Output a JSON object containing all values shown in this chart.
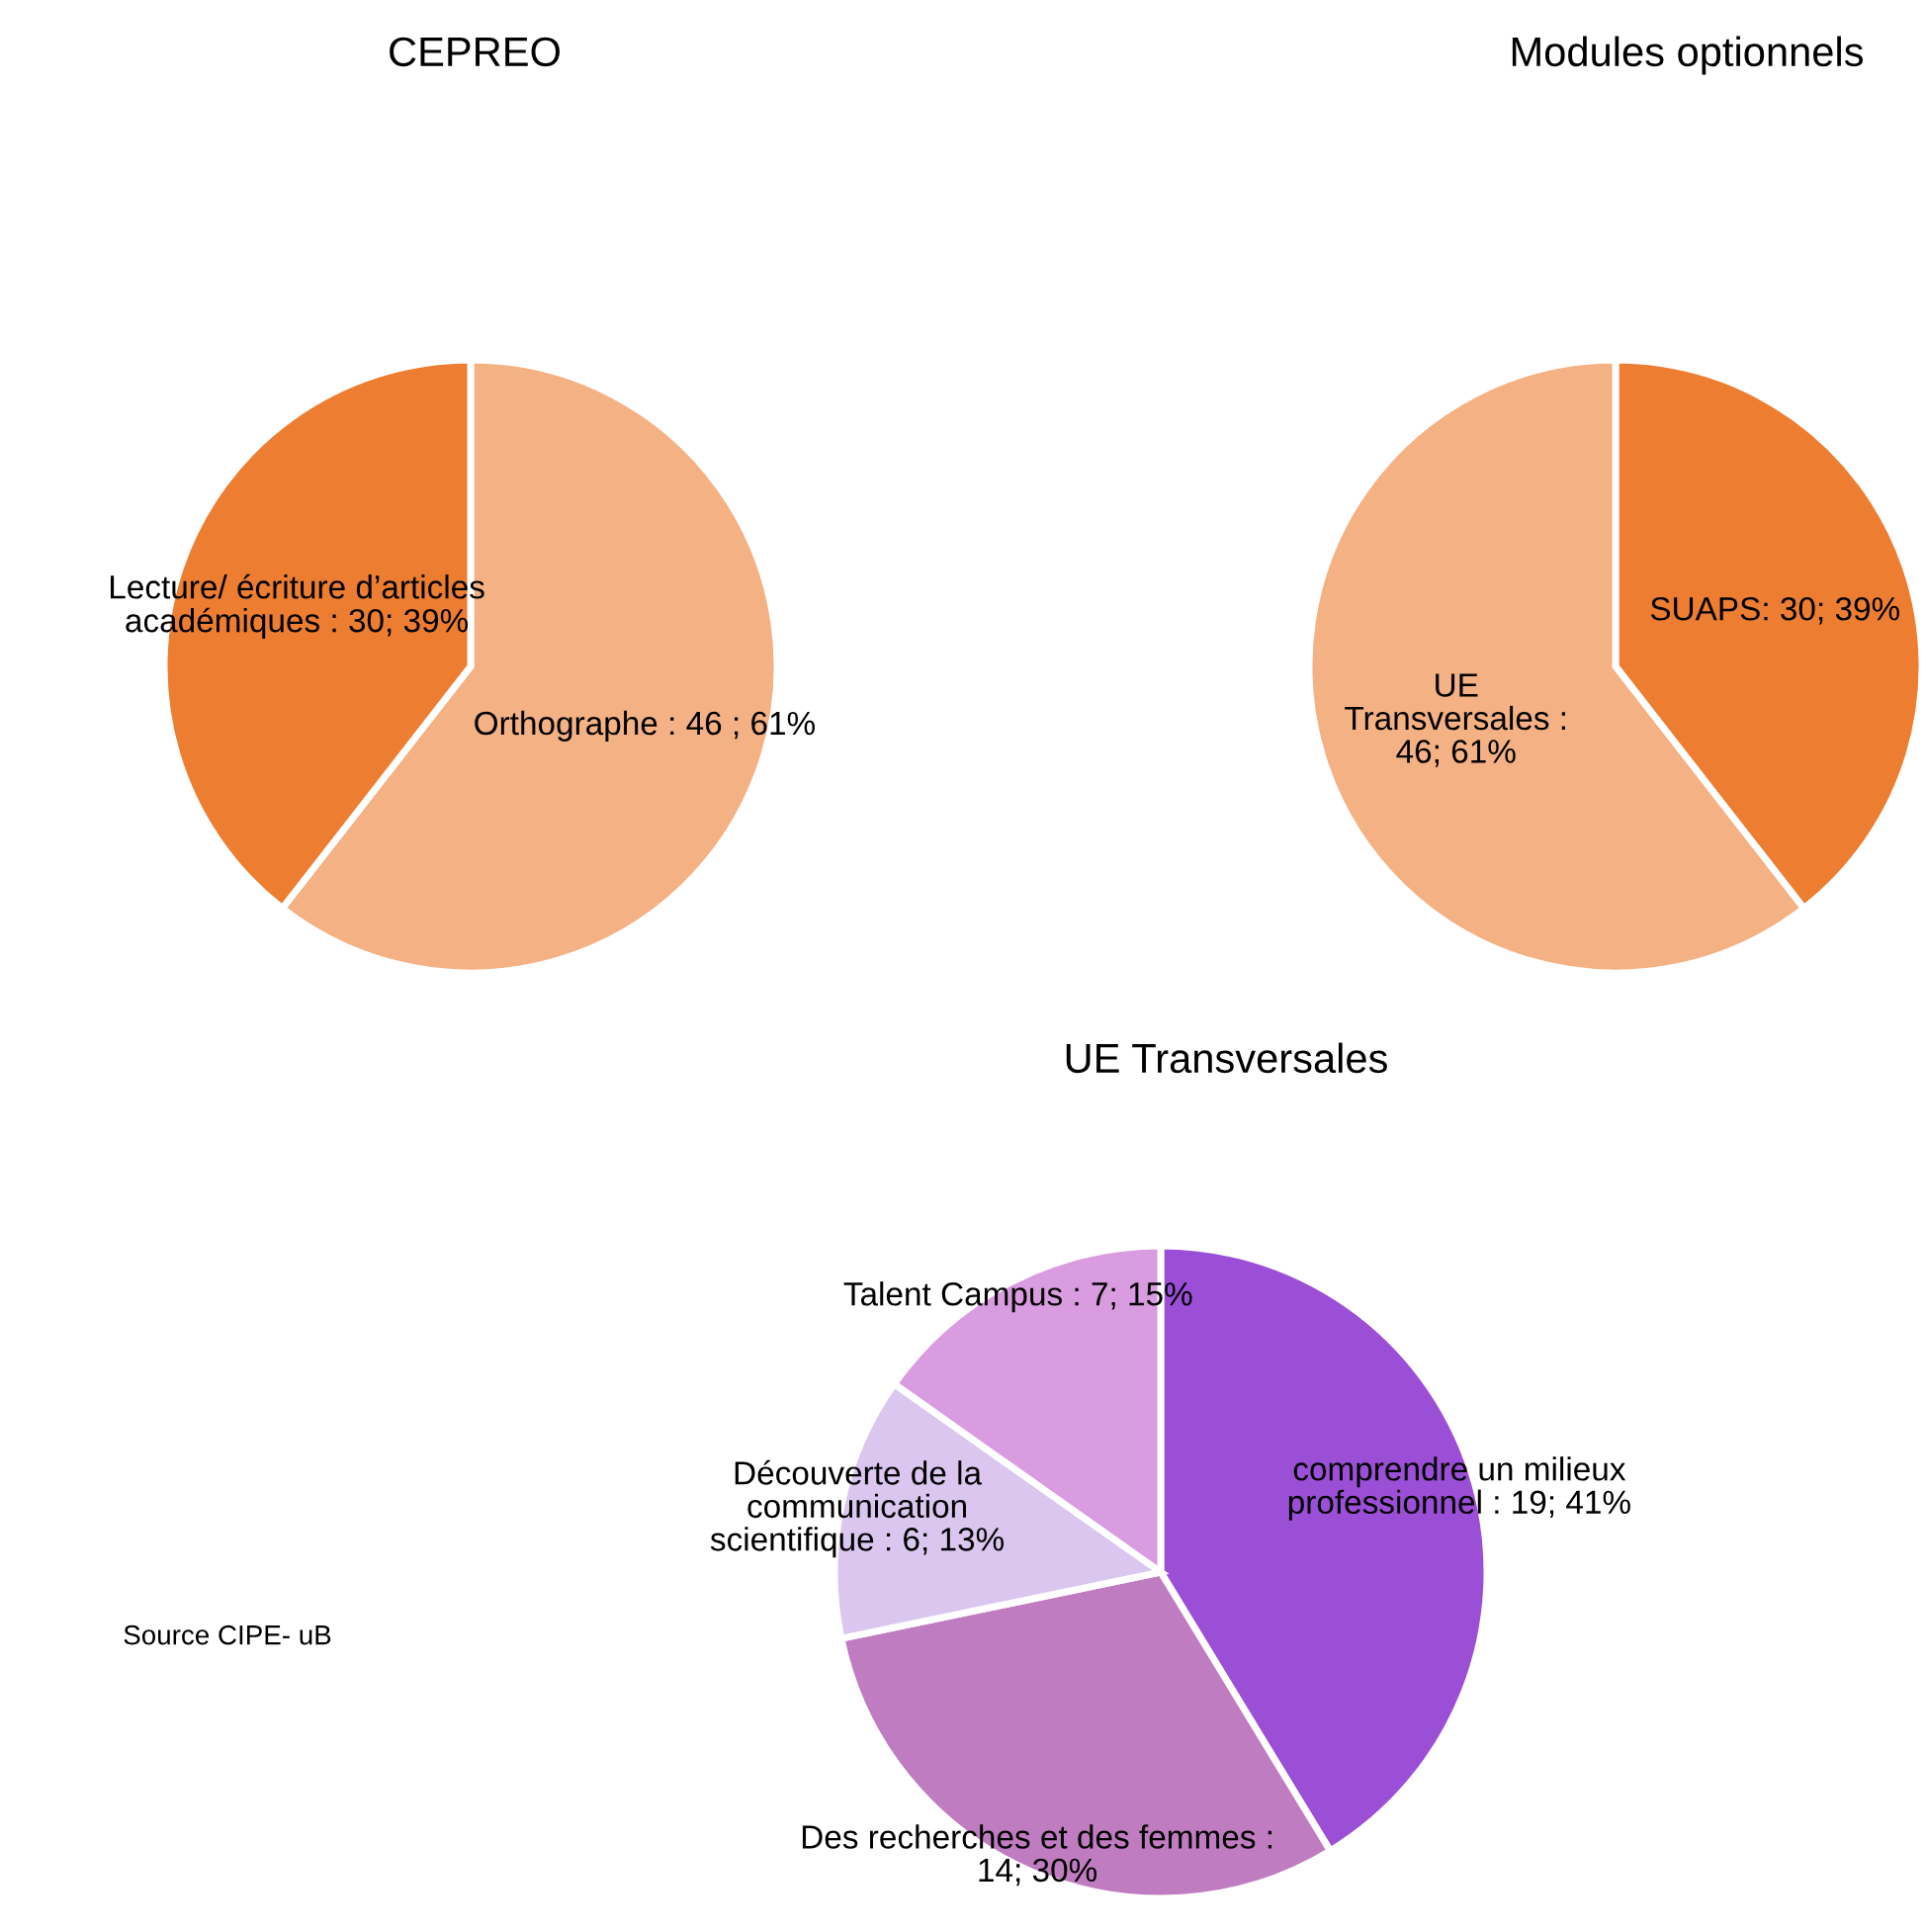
{
  "chart_data": [
    {
      "type": "pie",
      "title": "CEPREO",
      "categories": [
        "Orthographe ",
        "Lecture/ écriture d’articles\nacadémiques "
      ],
      "values": [
        46,
        30
      ],
      "value_labels": [
        ": 46 ; 61%",
        ": 30; 39%"
      ],
      "colors": [
        "#f4b183",
        "#ed7d31"
      ]
    },
    {
      "type": "pie",
      "title": "Modules optionnels",
      "categories": [
        "SUAPS",
        "UE\nTransversales "
      ],
      "values": [
        30,
        46
      ],
      "value_labels": [
        ": 30; 39%",
        ":\n46; 61%"
      ],
      "colors": [
        "#ed7d31",
        "#f4b183"
      ]
    },
    {
      "type": "pie",
      "title": "UE Transversales",
      "categories": [
        "comprendre un milieux\nprofessionnel ",
        "Des recherches et des femmes ",
        "Découverte de la\ncommunication\nscientifique ",
        "Talent Campus "
      ],
      "values": [
        19,
        14,
        6,
        7
      ],
      "value_labels": [
        ": 19; 41%",
        ":\n14; 30%",
        ": 6; 13%",
        ": 7; 15%"
      ],
      "colors": [
        "#9b4fd6",
        "#c07cc0",
        "#dac6ee",
        "#d99ce0"
      ],
      "annotations": [
        "Source CIPE- uB"
      ]
    }
  ]
}
